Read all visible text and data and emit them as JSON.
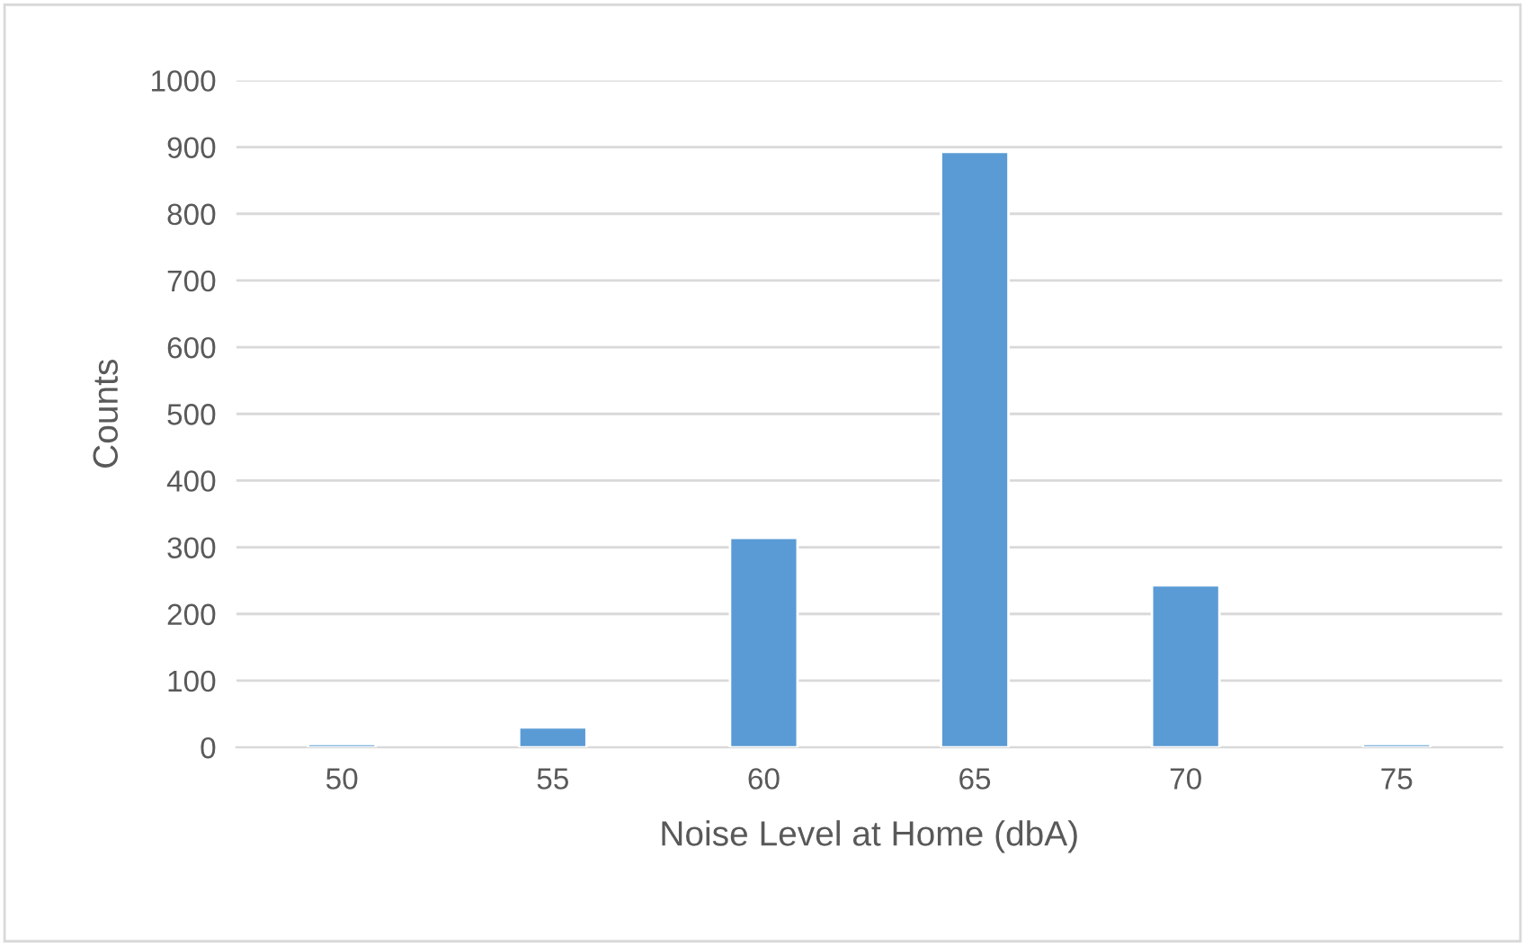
{
  "chart_data": {
    "type": "bar",
    "xlabel": "Noise Level at Home (dbA)",
    "ylabel": "Counts",
    "categories": [
      "50",
      "55",
      "60",
      "65",
      "70",
      "75"
    ],
    "values": [
      5,
      30,
      314,
      893,
      243,
      5
    ],
    "color": "#5b9bd5",
    "ylim": [
      0,
      1000
    ],
    "yticks": [
      0,
      100,
      200,
      300,
      400,
      500,
      600,
      700,
      800,
      900,
      1000
    ],
    "grid": "y"
  }
}
